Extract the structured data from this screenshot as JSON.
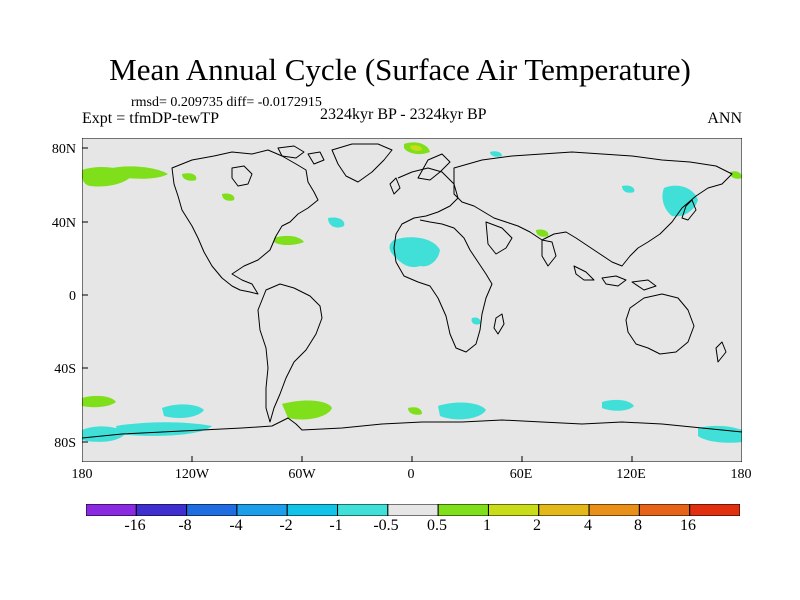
{
  "title": "Mean Annual Cycle (Surface Air Temperature)",
  "stats": "rmsd= 0.209735 diff= -0.0172915",
  "expt": "Expt = tfmDP-tewTP",
  "center_label": "2324kyr BP - 2324kyr BP",
  "season": "ANN",
  "lat_labels": [
    "80N",
    "40N",
    "0",
    "40S",
    "80S"
  ],
  "lon_labels": [
    "180",
    "120W",
    "60W",
    "0",
    "60E",
    "120E",
    "180"
  ],
  "colorbar": {
    "colors": [
      "#8a2be2",
      "#3f2fd1",
      "#1f6de0",
      "#1e9ee8",
      "#12c3e8",
      "#40e0d8",
      "#e6e6e6",
      "#7fdf1a",
      "#c8dc1a",
      "#e2b81a",
      "#e8901a",
      "#e6631a",
      "#e03010"
    ],
    "labels": [
      "-16",
      "-8",
      "-4",
      "-2",
      "-1",
      "-0.5",
      "0.5",
      "1",
      "2",
      "4",
      "8",
      "16"
    ]
  },
  "map": {
    "background": "#e6e6e6",
    "anomaly_colors": {
      "cool": "#40e0d8",
      "warm": "#7fdf1a",
      "hot": "#c8dc1a"
    }
  }
}
